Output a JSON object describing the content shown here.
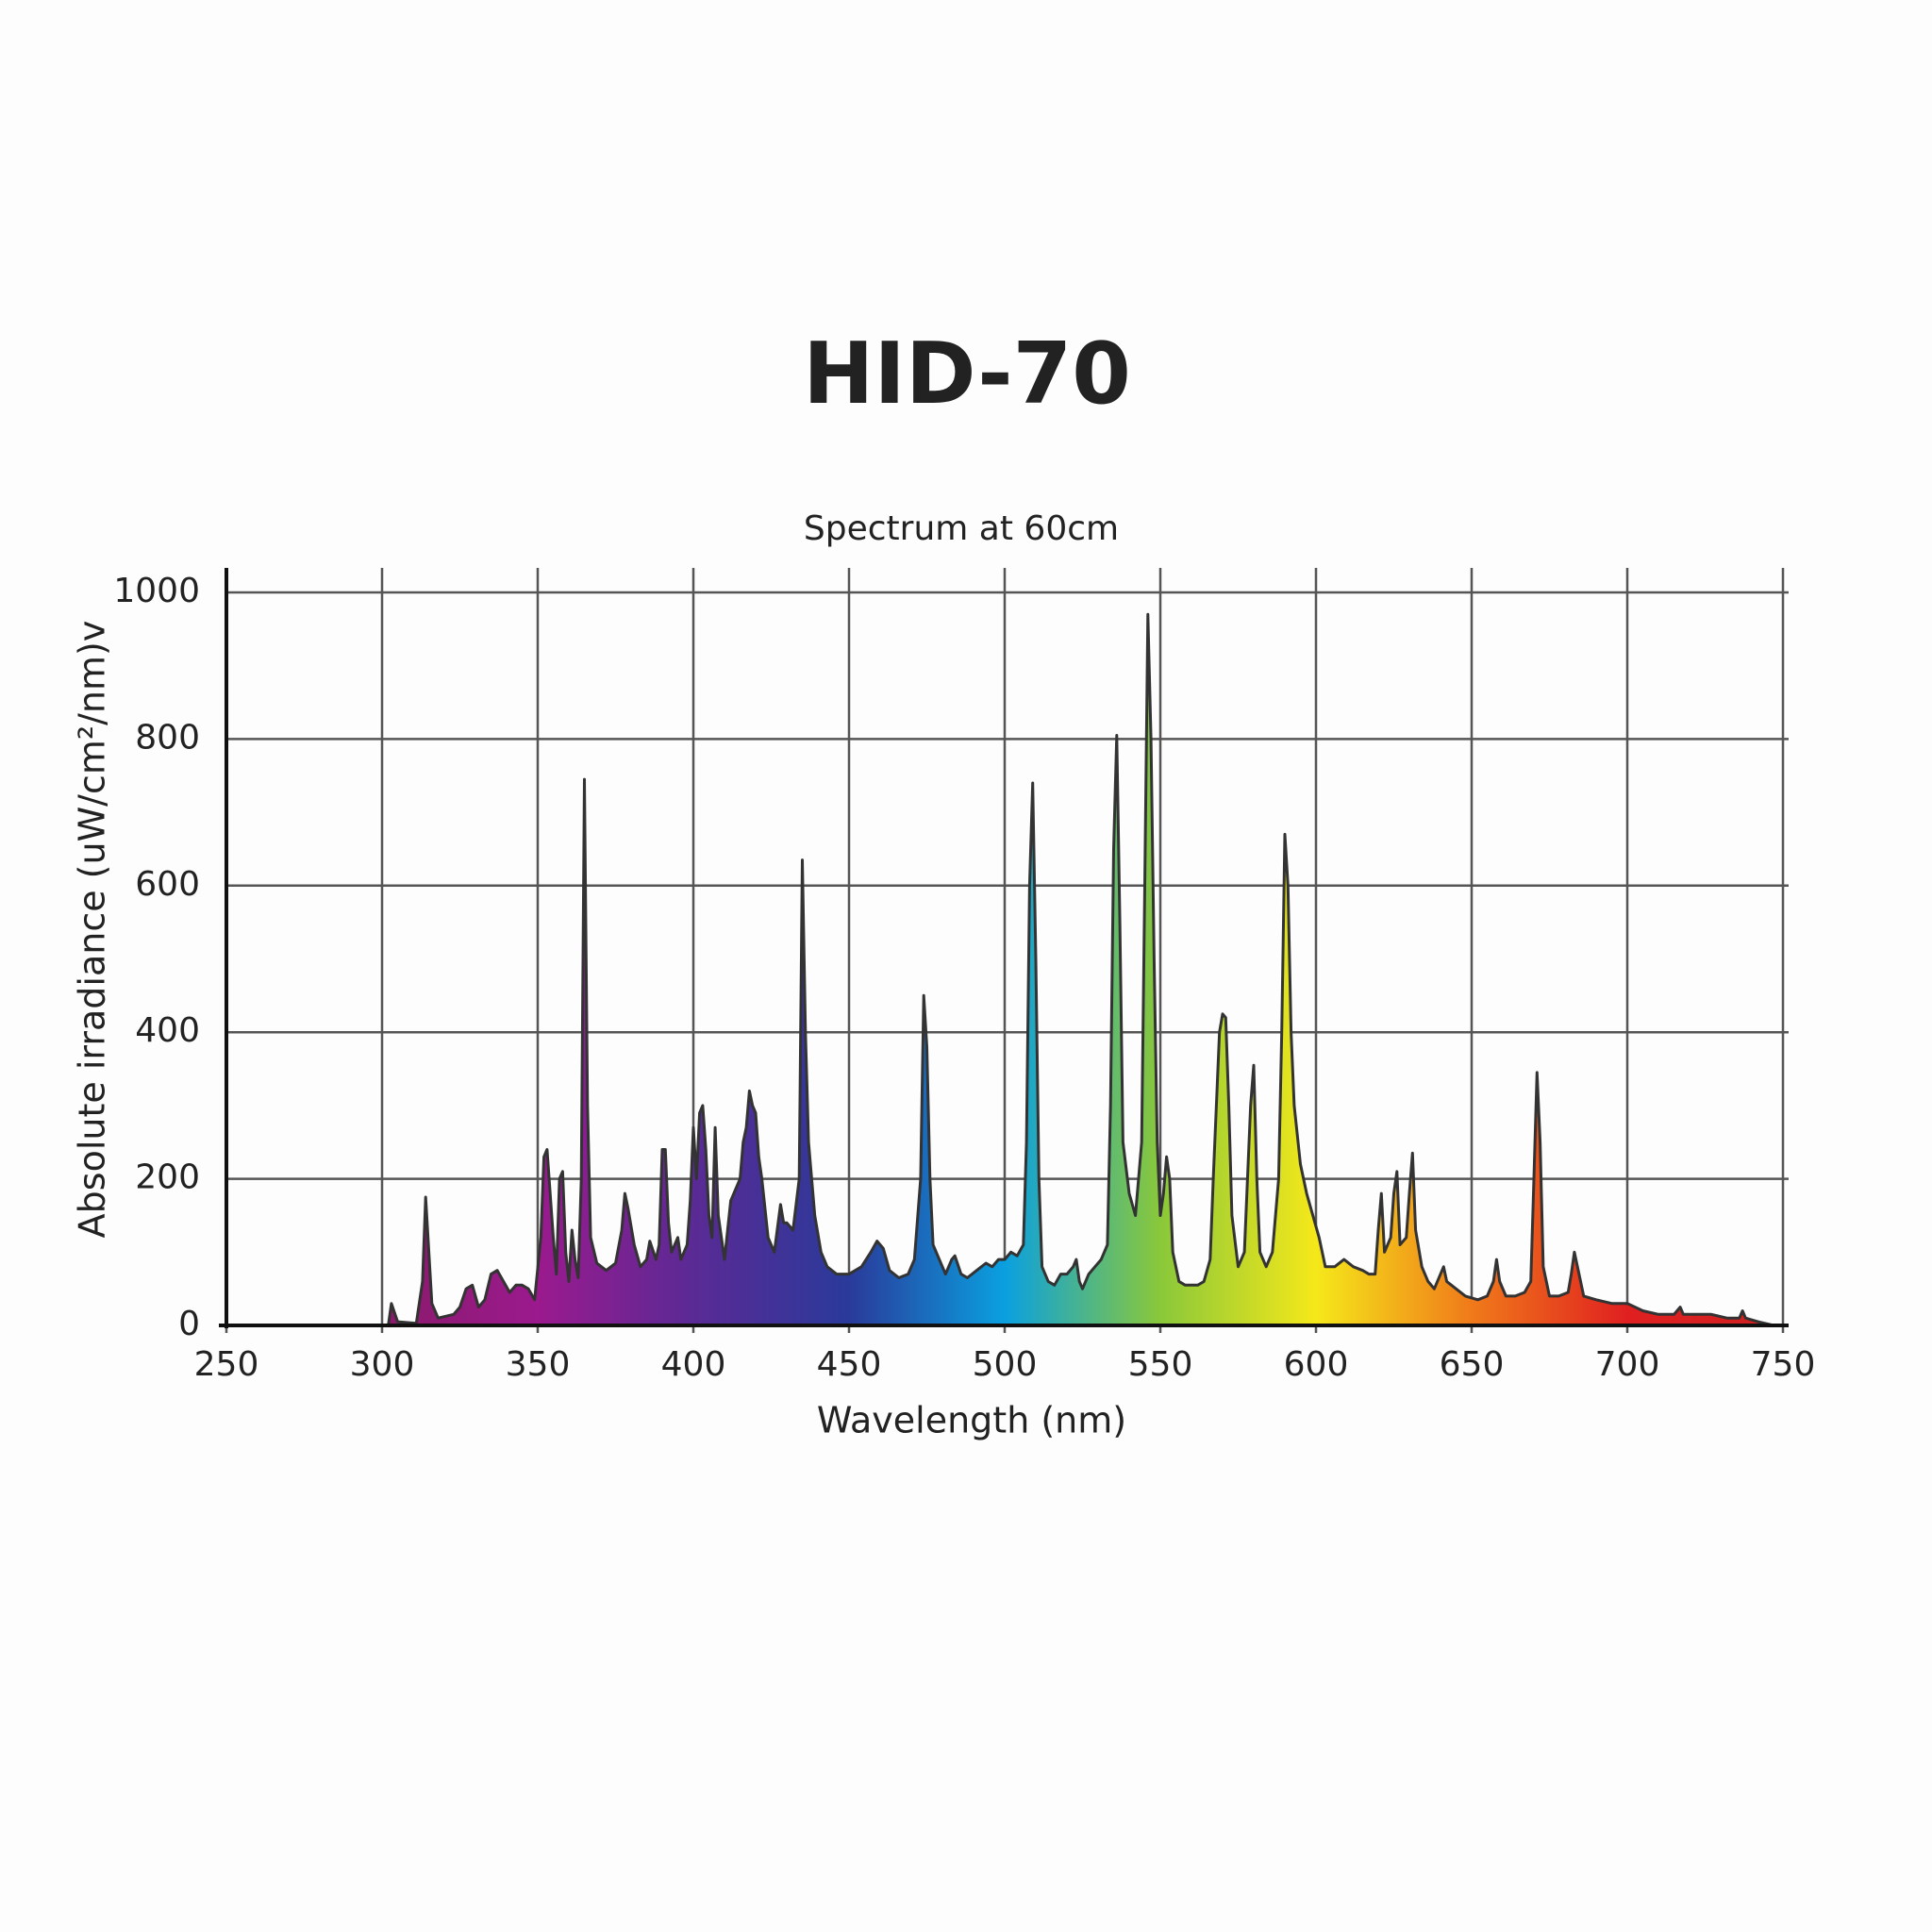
{
  "chart_data": {
    "type": "area",
    "title": "HID-70",
    "subtitle": "Spectrum at 60cm",
    "x_label": "Wavelength (nm)",
    "y_label": "Absolute irradiance (uW/cm²/nm)v",
    "xlim": [
      250,
      750
    ],
    "xticks": [
      250,
      300,
      350,
      400,
      450,
      500,
      550,
      600,
      650,
      700,
      750
    ],
    "ylim": [
      0,
      1000
    ],
    "yticks": [
      0,
      200,
      400,
      600,
      800,
      1000
    ],
    "grid": true,
    "line_color": "#333333",
    "fill_colors": [
      "#8a1a6a",
      "#8a1a6a",
      "#9b1a8e",
      "#5a2a95",
      "#2a3a9a",
      "#0aa0e0",
      "#8ac83a",
      "#f5e81a",
      "#f07a1a",
      "#e02020",
      "#d02020"
    ],
    "x": [
      250,
      300,
      302,
      303,
      305,
      311,
      313,
      314,
      316,
      318,
      323,
      325,
      327,
      329,
      331,
      333,
      335,
      337,
      339,
      341,
      343,
      345,
      347,
      349,
      351,
      352,
      353,
      355,
      356,
      357,
      358,
      359,
      360,
      361,
      362,
      363,
      364,
      365,
      366,
      367,
      369,
      372,
      375,
      377,
      378,
      379,
      381,
      383,
      385,
      386,
      388,
      389,
      390,
      391,
      392,
      393,
      395,
      396,
      398,
      399,
      400,
      401,
      402,
      403,
      404,
      405,
      406,
      407,
      408,
      410,
      412,
      414,
      415,
      416,
      417,
      418,
      419,
      420,
      421,
      422,
      424,
      426,
      428,
      429,
      430,
      432,
      434,
      435,
      436,
      437,
      439,
      441,
      443,
      446,
      450,
      454,
      457,
      459,
      461,
      463,
      466,
      469,
      471,
      473,
      474,
      475,
      476,
      477,
      479,
      481,
      483,
      484,
      486,
      488,
      491,
      494,
      496,
      498,
      500,
      502,
      504,
      506,
      507,
      508,
      509,
      510,
      511,
      512,
      514,
      516,
      518,
      520,
      522,
      523,
      524,
      525,
      527,
      529,
      531,
      533,
      534,
      535,
      536,
      537,
      538,
      540,
      542,
      544,
      545,
      546,
      547,
      548,
      549,
      550,
      551,
      552,
      553,
      554,
      556,
      558,
      562,
      564,
      566,
      567,
      568,
      569,
      570,
      571,
      572,
      573,
      575,
      577,
      578,
      579,
      580,
      581,
      582,
      584,
      586,
      588,
      589,
      590,
      591,
      592,
      593,
      595,
      597,
      599,
      601,
      603,
      606,
      609,
      612,
      615,
      617,
      619,
      620,
      621,
      622,
      624,
      625,
      626,
      627,
      629,
      630,
      631,
      632,
      634,
      636,
      638,
      640,
      641,
      642,
      645,
      648,
      652,
      655,
      657,
      658,
      659,
      661,
      664,
      667,
      669,
      670,
      671,
      672,
      673,
      675,
      678,
      681,
      682,
      683,
      684,
      686,
      690,
      695,
      700,
      705,
      710,
      715,
      717,
      718,
      722,
      727,
      732,
      736,
      737,
      738,
      742,
      747
    ],
    "values": [
      0,
      0,
      0,
      30,
      5,
      3,
      60,
      175,
      30,
      10,
      15,
      25,
      50,
      55,
      25,
      35,
      70,
      75,
      60,
      45,
      55,
      55,
      50,
      35,
      120,
      230,
      240,
      120,
      70,
      200,
      210,
      100,
      60,
      130,
      90,
      65,
      200,
      745,
      300,
      120,
      85,
      75,
      85,
      130,
      180,
      160,
      110,
      80,
      90,
      115,
      90,
      110,
      240,
      240,
      140,
      100,
      120,
      90,
      110,
      170,
      270,
      200,
      290,
      300,
      240,
      150,
      120,
      270,
      150,
      90,
      170,
      190,
      200,
      250,
      270,
      320,
      300,
      290,
      230,
      200,
      120,
      100,
      165,
      140,
      140,
      130,
      200,
      635,
      400,
      250,
      150,
      100,
      80,
      70,
      70,
      80,
      100,
      115,
      105,
      75,
      65,
      70,
      90,
      200,
      450,
      380,
      200,
      110,
      90,
      70,
      90,
      95,
      70,
      65,
      75,
      85,
      80,
      90,
      90,
      100,
      95,
      110,
      250,
      600,
      740,
      500,
      200,
      80,
      60,
      55,
      70,
      70,
      80,
      90,
      60,
      50,
      70,
      80,
      90,
      110,
      300,
      650,
      805,
      550,
      250,
      180,
      150,
      250,
      600,
      970,
      800,
      500,
      250,
      150,
      180,
      230,
      200,
      100,
      60,
      55,
      55,
      60,
      90,
      200,
      300,
      400,
      425,
      420,
      300,
      150,
      80,
      100,
      200,
      300,
      355,
      200,
      100,
      80,
      100,
      200,
      400,
      670,
      600,
      400,
      300,
      220,
      180,
      150,
      120,
      80,
      80,
      90,
      80,
      75,
      70,
      70,
      130,
      180,
      100,
      120,
      180,
      210,
      110,
      120,
      180,
      235,
      130,
      80,
      60,
      50,
      70,
      80,
      60,
      50,
      40,
      35,
      40,
      60,
      90,
      60,
      40,
      40,
      45,
      60,
      200,
      345,
      250,
      80,
      40,
      40,
      45,
      70,
      100,
      80,
      40,
      35,
      30,
      30,
      20,
      15,
      15,
      25,
      15,
      15,
      15,
      10,
      10,
      20,
      10,
      5,
      0
    ]
  }
}
